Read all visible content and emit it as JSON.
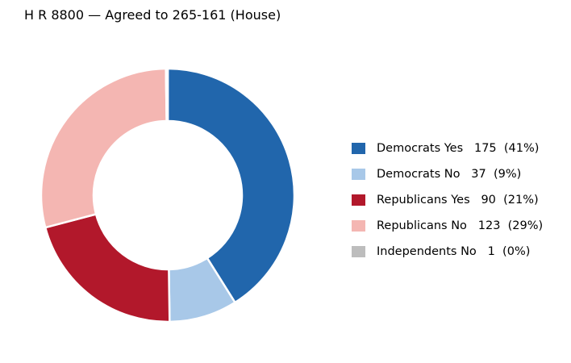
{
  "chart_data": {
    "type": "pie",
    "donut": true,
    "title": "H R 8800 — Agreed to 265-161 (House)",
    "slices": [
      {
        "label": "Democrats Yes",
        "value": 175,
        "pct": "41%",
        "color": "#2166ac"
      },
      {
        "label": "Democrats No",
        "value": 37,
        "pct": "9%",
        "color": "#a8c8e8"
      },
      {
        "label": "Republicans Yes",
        "value": 90,
        "pct": "21%",
        "color": "#b2182b"
      },
      {
        "label": "Republicans No",
        "value": 123,
        "pct": "29%",
        "color": "#f4b6b2"
      },
      {
        "label": "Independents No",
        "value": 1,
        "pct": "0%",
        "color": "#bdbdbd"
      }
    ],
    "legend_position": "right"
  }
}
